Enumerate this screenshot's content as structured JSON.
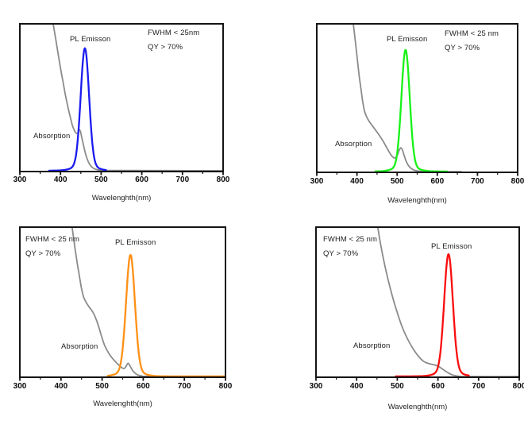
{
  "page": {
    "background": "#ffffff",
    "frame_color": "#141414",
    "text_color": "#1f1f1f"
  },
  "chart_data": [
    {
      "type": "line",
      "panel": "top-left",
      "emission_color_name": "blue",
      "xlabel": "Wavelenghth(nm)",
      "x_range": [
        300,
        800
      ],
      "x_ticks": [
        300,
        400,
        500,
        600,
        700,
        800
      ],
      "x_minor_ticks": [
        350,
        450,
        550,
        650,
        750
      ],
      "grid": false,
      "annotations": {
        "emission_label": "PL Emisson",
        "absorption_label": "Absorption",
        "fwhm_label": "FWHM < 25nm",
        "qy_label": "QY > 70%"
      },
      "series": [
        {
          "name": "Absorption",
          "color": "#8b8b8b",
          "points_nm_intensity": [
            [
              376,
              1.1
            ],
            [
              382,
              1.0
            ],
            [
              388,
              0.9
            ],
            [
              394,
              0.8
            ],
            [
              400,
              0.7
            ],
            [
              406,
              0.61
            ],
            [
              412,
              0.52
            ],
            [
              418,
              0.44
            ],
            [
              424,
              0.37
            ],
            [
              429,
              0.315
            ],
            [
              433,
              0.285
            ],
            [
              437,
              0.265
            ],
            [
              440,
              0.258
            ],
            [
              443,
              0.262
            ],
            [
              446,
              0.283
            ],
            [
              449,
              0.272
            ],
            [
              452,
              0.235
            ],
            [
              456,
              0.185
            ],
            [
              460,
              0.138
            ],
            [
              464,
              0.098
            ],
            [
              469,
              0.063
            ],
            [
              474,
              0.04
            ],
            [
              480,
              0.024
            ],
            [
              488,
              0.014
            ],
            [
              500,
              0.009
            ],
            [
              520,
              0.007
            ],
            [
              800,
              0.006
            ]
          ]
        },
        {
          "name": "PL Emisson",
          "color": "#1b1bf0",
          "profile": "gaussian",
          "peak_nm": 460,
          "fwhm_nm": 24,
          "peak_intensity": 0.835,
          "draw_range_nm": [
            372,
            512
          ]
        }
      ]
    },
    {
      "type": "line",
      "panel": "top-right",
      "emission_color_name": "green",
      "xlabel": "Wavelenghth(nm)",
      "x_range": [
        300,
        800
      ],
      "x_ticks": [
        300,
        400,
        500,
        600,
        700,
        800
      ],
      "x_minor_ticks": [
        350,
        450,
        550,
        650,
        750
      ],
      "grid": false,
      "annotations": {
        "emission_label": "PL Emisson",
        "absorption_label": "Absorption",
        "fwhm_label": "FWHM < 25 nm",
        "qy_label": "QY > 70%"
      },
      "series": [
        {
          "name": "Absorption",
          "color": "#8b8b8b",
          "points_nm_intensity": [
            [
              386,
              1.1
            ],
            [
              391,
              1.0
            ],
            [
              396,
              0.88
            ],
            [
              401,
              0.76
            ],
            [
              406,
              0.64
            ],
            [
              411,
              0.54
            ],
            [
              415,
              0.465
            ],
            [
              419,
              0.41
            ],
            [
              424,
              0.375
            ],
            [
              430,
              0.345
            ],
            [
              438,
              0.315
            ],
            [
              447,
              0.282
            ],
            [
              456,
              0.248
            ],
            [
              465,
              0.21
            ],
            [
              473,
              0.172
            ],
            [
              480,
              0.138
            ],
            [
              486,
              0.113
            ],
            [
              491,
              0.1
            ],
            [
              495,
              0.097
            ],
            [
              500,
              0.112
            ],
            [
              505,
              0.148
            ],
            [
              509,
              0.165
            ],
            [
              513,
              0.152
            ],
            [
              517,
              0.118
            ],
            [
              522,
              0.078
            ],
            [
              528,
              0.046
            ],
            [
              535,
              0.026
            ],
            [
              543,
              0.014
            ],
            [
              553,
              0.008
            ],
            [
              570,
              0.005
            ],
            [
              610,
              0.004
            ],
            [
              660,
              0.004
            ]
          ]
        },
        {
          "name": "PL Emisson",
          "color": "#17f217",
          "profile": "gaussian",
          "peak_nm": 521,
          "fwhm_nm": 24,
          "peak_intensity": 0.825,
          "draw_range_nm": [
            446,
            624
          ]
        }
      ]
    },
    {
      "type": "line",
      "panel": "bottom-left",
      "emission_color_name": "orange",
      "xlabel": "Wavelenghth(nm)",
      "x_range": [
        300,
        800
      ],
      "x_ticks": [
        300,
        400,
        500,
        600,
        700,
        800
      ],
      "x_minor_ticks": [
        350,
        450,
        550,
        650,
        750
      ],
      "grid": false,
      "annotations": {
        "emission_label": "PL Emisson",
        "absorption_label": "Absorption",
        "fwhm_label": "FWHM < 25 nm",
        "qy_label": "QY > 70%"
      },
      "series": [
        {
          "name": "Absorption",
          "color": "#8b8b8b",
          "points_nm_intensity": [
            [
              421,
              1.1
            ],
            [
              427,
              1.0
            ],
            [
              433,
              0.88
            ],
            [
              439,
              0.77
            ],
            [
              445,
              0.67
            ],
            [
              450,
              0.59
            ],
            [
              455,
              0.535
            ],
            [
              461,
              0.5
            ],
            [
              468,
              0.47
            ],
            [
              475,
              0.445
            ],
            [
              481,
              0.415
            ],
            [
              487,
              0.375
            ],
            [
              493,
              0.325
            ],
            [
              499,
              0.27
            ],
            [
              505,
              0.22
            ],
            [
              512,
              0.18
            ],
            [
              519,
              0.148
            ],
            [
              527,
              0.12
            ],
            [
              535,
              0.096
            ],
            [
              543,
              0.075
            ],
            [
              549,
              0.062
            ],
            [
              553,
              0.058
            ],
            [
              557,
              0.066
            ],
            [
              561,
              0.086
            ],
            [
              564,
              0.092
            ],
            [
              568,
              0.075
            ],
            [
              573,
              0.05
            ],
            [
              579,
              0.03
            ],
            [
              586,
              0.016
            ],
            [
              596,
              0.009
            ],
            [
              615,
              0.006
            ],
            [
              800,
              0.005
            ]
          ]
        },
        {
          "name": "PL Emisson",
          "color": "#ff9015",
          "profile": "gaussian",
          "peak_nm": 569,
          "fwhm_nm": 25,
          "peak_intensity": 0.815,
          "draw_range_nm": [
            514,
            800
          ]
        }
      ]
    },
    {
      "type": "line",
      "panel": "bottom-right",
      "emission_color_name": "red",
      "xlabel": "Wavelenghth(nm)",
      "x_range": [
        300,
        800
      ],
      "x_ticks": [
        300,
        400,
        500,
        600,
        700,
        800
      ],
      "x_minor_ticks": [
        350,
        450,
        550,
        650,
        750
      ],
      "grid": false,
      "annotations": {
        "emission_label": "PL Emisson",
        "absorption_label": "Absorption",
        "fwhm_label": "FWHM < 25 nm",
        "qy_label": "QY > 70%"
      },
      "series": [
        {
          "name": "Absorption",
          "color": "#8b8b8b",
          "points_nm_intensity": [
            [
              446,
              1.1
            ],
            [
              452,
              1.0
            ],
            [
              458,
              0.9
            ],
            [
              465,
              0.8
            ],
            [
              473,
              0.7
            ],
            [
              482,
              0.6
            ],
            [
              491,
              0.51
            ],
            [
              500,
              0.43
            ],
            [
              510,
              0.35
            ],
            [
              520,
              0.285
            ],
            [
              530,
              0.23
            ],
            [
              540,
              0.185
            ],
            [
              549,
              0.15
            ],
            [
              557,
              0.125
            ],
            [
              564,
              0.107
            ],
            [
              571,
              0.097
            ],
            [
              579,
              0.09
            ],
            [
              588,
              0.084
            ],
            [
              597,
              0.077
            ],
            [
              605,
              0.066
            ],
            [
              612,
              0.053
            ],
            [
              619,
              0.04
            ],
            [
              626,
              0.028
            ],
            [
              634,
              0.017
            ],
            [
              643,
              0.01
            ],
            [
              654,
              0.006
            ],
            [
              668,
              0.004
            ],
            [
              800,
              0.004
            ]
          ]
        },
        {
          "name": "PL Emisson",
          "color": "#f90d0d",
          "profile": "gaussian",
          "peak_nm": 626,
          "fwhm_nm": 25,
          "peak_intensity": 0.82,
          "draw_range_nm": [
            496,
            676
          ]
        }
      ]
    }
  ]
}
